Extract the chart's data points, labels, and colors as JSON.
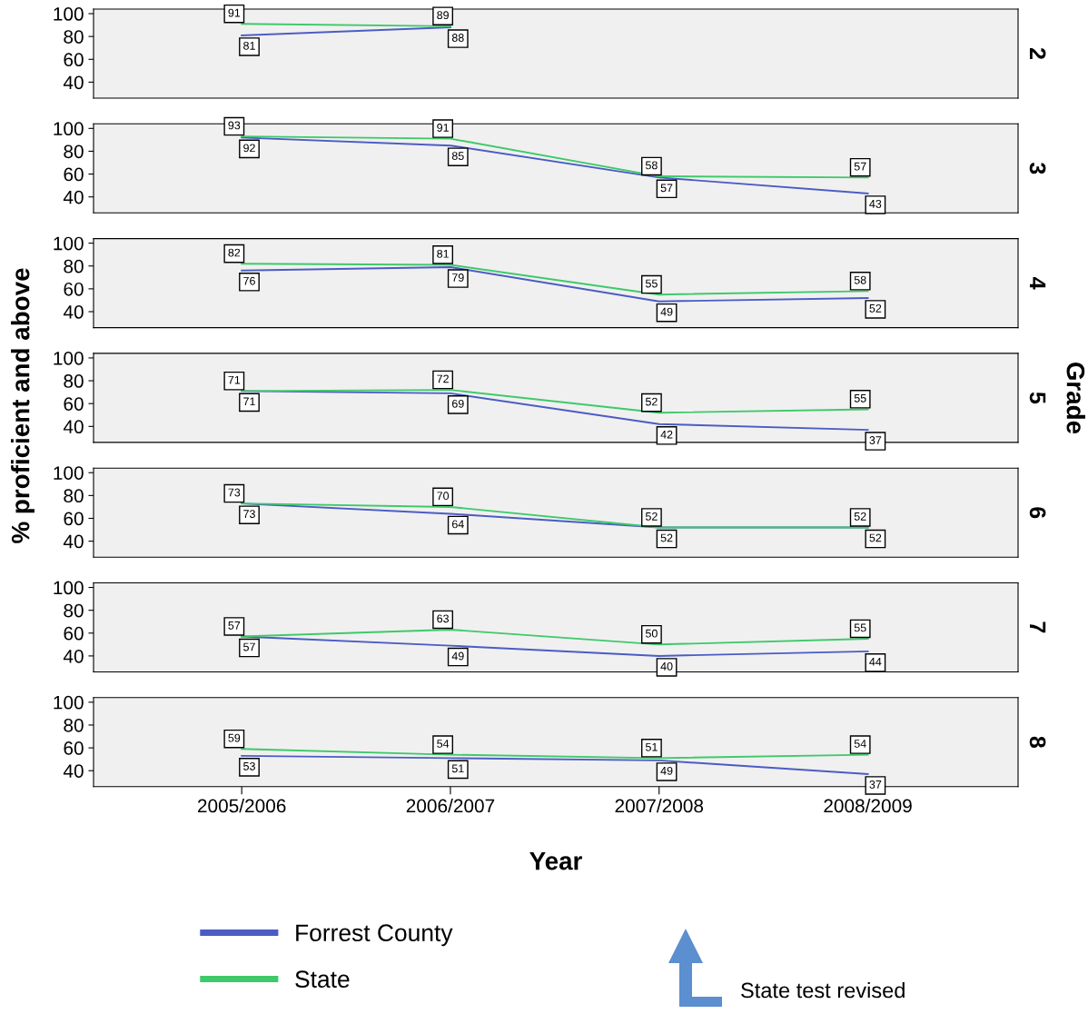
{
  "chart_data": [
    {
      "type": "line",
      "y2label": "2",
      "categories": [
        null,
        null,
        null,
        null
      ],
      "ylim": [
        26,
        104
      ],
      "yticks": [
        40,
        60,
        80,
        100
      ],
      "tick_labels": "y",
      "data_labels": true,
      "grid": false,
      "series": [
        {
          "color": "#4b5cc4",
          "values": [
            81,
            88,
            null,
            null
          ]
        },
        {
          "color": "#3ec96a",
          "values": [
            91,
            89,
            null,
            null
          ]
        }
      ]
    },
    {
      "type": "line",
      "y2label": "3",
      "categories": [
        null,
        null,
        null,
        null
      ],
      "ylim": [
        26,
        104
      ],
      "yticks": [
        40,
        60,
        80,
        100
      ],
      "tick_labels": "y",
      "data_labels": true,
      "grid": false,
      "series": [
        {
          "color": "#4b5cc4",
          "values": [
            92,
            85,
            57,
            43
          ]
        },
        {
          "color": "#3ec96a",
          "values": [
            93,
            91,
            58,
            57
          ]
        }
      ]
    },
    {
      "type": "line",
      "y2label": "4",
      "categories": [
        null,
        null,
        null,
        null
      ],
      "ylim": [
        26,
        104
      ],
      "yticks": [
        40,
        60,
        80,
        100
      ],
      "tick_labels": "y",
      "data_labels": true,
      "grid": false,
      "series": [
        {
          "color": "#4b5cc4",
          "values": [
            76,
            79,
            49,
            52
          ]
        },
        {
          "color": "#3ec96a",
          "values": [
            82,
            81,
            55,
            58
          ]
        }
      ]
    },
    {
      "type": "line",
      "y2label": "5",
      "ylabel": "% proficient and above",
      "annotations": [
        "Grade"
      ],
      "categories": [
        null,
        null,
        null,
        null
      ],
      "ylim": [
        26,
        104
      ],
      "yticks": [
        40,
        60,
        80,
        100
      ],
      "tick_labels": "y",
      "data_labels": true,
      "grid": false,
      "series": [
        {
          "color": "#4b5cc4",
          "values": [
            71,
            69,
            42,
            37
          ]
        },
        {
          "color": "#3ec96a",
          "values": [
            71,
            72,
            52,
            55
          ]
        }
      ]
    },
    {
      "type": "line",
      "y2label": "6",
      "categories": [
        null,
        null,
        null,
        null
      ],
      "ylim": [
        26,
        104
      ],
      "yticks": [
        40,
        60,
        80,
        100
      ],
      "tick_labels": "y",
      "data_labels": true,
      "grid": false,
      "series": [
        {
          "color": "#4b5cc4",
          "values": [
            73,
            64,
            52,
            52
          ]
        },
        {
          "color": "#3ec96a",
          "values": [
            73,
            70,
            52,
            52
          ]
        }
      ]
    },
    {
      "type": "line",
      "y2label": "7",
      "categories": [
        null,
        null,
        null,
        null
      ],
      "ylim": [
        26,
        104
      ],
      "yticks": [
        40,
        60,
        80,
        100
      ],
      "tick_labels": "y",
      "data_labels": true,
      "grid": false,
      "series": [
        {
          "color": "#4b5cc4",
          "values": [
            57,
            49,
            40,
            44
          ]
        },
        {
          "color": "#3ec96a",
          "values": [
            57,
            63,
            50,
            55
          ]
        }
      ]
    },
    {
      "type": "line",
      "y2label": "8",
      "xlabel": "Year",
      "categories": [
        "2005/2006",
        "2006/2007",
        "2007/2008",
        "2008/2009"
      ],
      "ylim": [
        26,
        104
      ],
      "yticks": [
        40,
        60,
        80,
        100
      ],
      "data_labels": true,
      "grid": false,
      "legend": "bottom",
      "annotations": [
        "State test revised"
      ],
      "series": [
        {
          "name": "Forrest County",
          "color": "#4b5cc4",
          "values": [
            53,
            51,
            49,
            37
          ]
        },
        {
          "name": "State",
          "color": "#3ec96a",
          "values": [
            59,
            54,
            51,
            54
          ]
        }
      ]
    }
  ]
}
